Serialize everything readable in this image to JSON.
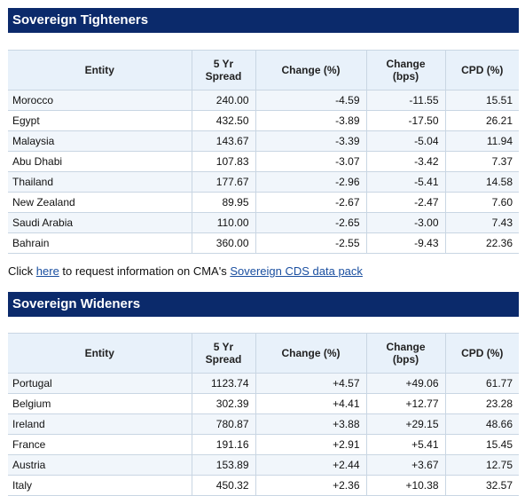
{
  "tighteners": {
    "title": "Sovereign Tighteners",
    "headers": {
      "entity": "Entity",
      "spread_1": "5 Yr",
      "spread_2": "Spread",
      "change_pct": "Change (%)",
      "change_bps_1": "Change",
      "change_bps_2": "(bps)",
      "cpd": "CPD (%)"
    },
    "rows": [
      {
        "entity": "Morocco",
        "spread": "240.00",
        "change_pct": "-4.59",
        "change_bps": "-11.55",
        "cpd": "15.51"
      },
      {
        "entity": "Egypt",
        "spread": "432.50",
        "change_pct": "-3.89",
        "change_bps": "-17.50",
        "cpd": "26.21"
      },
      {
        "entity": "Malaysia",
        "spread": "143.67",
        "change_pct": "-3.39",
        "change_bps": "-5.04",
        "cpd": "11.94"
      },
      {
        "entity": "Abu Dhabi",
        "spread": "107.83",
        "change_pct": "-3.07",
        "change_bps": "-3.42",
        "cpd": "7.37"
      },
      {
        "entity": "Thailand",
        "spread": "177.67",
        "change_pct": "-2.96",
        "change_bps": "-5.41",
        "cpd": "14.58"
      },
      {
        "entity": "New Zealand",
        "spread": "89.95",
        "change_pct": "-2.67",
        "change_bps": "-2.47",
        "cpd": "7.60"
      },
      {
        "entity": "Saudi Arabia",
        "spread": "110.00",
        "change_pct": "-2.65",
        "change_bps": "-3.00",
        "cpd": "7.43"
      },
      {
        "entity": "Bahrain",
        "spread": "360.00",
        "change_pct": "-2.55",
        "change_bps": "-9.43",
        "cpd": "22.36"
      }
    ]
  },
  "info_line": {
    "prefix": "Click ",
    "here_link": "here",
    "middle": " to request information on CMA's ",
    "pack_link": "Sovereign CDS data pack"
  },
  "wideners": {
    "title": "Sovereign Wideners",
    "headers": {
      "entity": "Entity",
      "spread_1": "5 Yr",
      "spread_2": "Spread",
      "change_pct": "Change (%)",
      "change_bps_1": "Change",
      "change_bps_2": "(bps)",
      "cpd": "CPD (%)"
    },
    "rows": [
      {
        "entity": "Portugal",
        "spread": "1123.74",
        "change_pct": "+4.57",
        "change_bps": "+49.06",
        "cpd": "61.77"
      },
      {
        "entity": "Belgium",
        "spread": "302.39",
        "change_pct": "+4.41",
        "change_bps": "+12.77",
        "cpd": "23.28"
      },
      {
        "entity": "Ireland",
        "spread": "780.87",
        "change_pct": "+3.88",
        "change_bps": "+29.15",
        "cpd": "48.66"
      },
      {
        "entity": "France",
        "spread": "191.16",
        "change_pct": "+2.91",
        "change_bps": "+5.41",
        "cpd": "15.45"
      },
      {
        "entity": "Austria",
        "spread": "153.89",
        "change_pct": "+2.44",
        "change_bps": "+3.67",
        "cpd": "12.75"
      },
      {
        "entity": "Italy",
        "spread": "450.32",
        "change_pct": "+2.36",
        "change_bps": "+10.38",
        "cpd": "32.57"
      }
    ]
  }
}
